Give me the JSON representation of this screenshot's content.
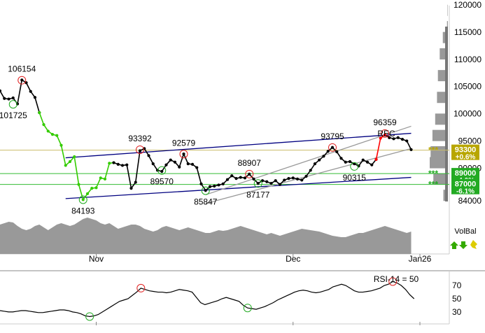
{
  "chart_data": {
    "type": "line",
    "price_panel": {
      "ylim": [
        84000,
        120000
      ],
      "y_ticks": [
        84000,
        90000,
        95000,
        100000,
        105000,
        110000,
        115000,
        120000
      ],
      "y_tick_labels": [
        "84000",
        "90000",
        "95000",
        "100000",
        "105000",
        "110000",
        "115000",
        "120000"
      ],
      "x_labels": [
        {
          "label": "Nov",
          "index": 22
        },
        {
          "label": "Dec",
          "index": 67
        },
        {
          "label": "Jan26",
          "index": 96
        }
      ],
      "series": {
        "values": [
          104200,
          102800,
          102700,
          102900,
          101800,
          106200,
          105700,
          104100,
          103000,
          100200,
          98000,
          96800,
          96200,
          96000,
          94200,
          90500,
          91200,
          92100,
          87000,
          84200,
          85300,
          86300,
          86400,
          88200,
          88000,
          90900,
          91000,
          90700,
          90500,
          90600,
          86300,
          87400,
          93200,
          93600,
          92300,
          90800,
          89600,
          89400,
          90600,
          91500,
          91100,
          90200,
          92600,
          90800,
          90700,
          90100,
          87100,
          85900,
          86600,
          86700,
          86900,
          87100,
          87900,
          88600,
          88100,
          88300,
          88200,
          88900,
          88000,
          87200,
          87700,
          87500,
          87200,
          87700,
          87000,
          87800,
          88100,
          88200,
          88000,
          87800,
          88500,
          89600,
          90800,
          91500,
          92200,
          93100,
          93800,
          93000,
          91800,
          91100,
          91200,
          90800,
          90400,
          91500,
          91100,
          90600,
          91600,
          95500,
          96100,
          95600,
          95400,
          95600,
          95300,
          95000,
          93400
        ],
        "color_segments": [
          {
            "from": 0,
            "to": 9,
            "color": "#000000"
          },
          {
            "from": 9,
            "to": 26,
            "color": "#33cc00"
          },
          {
            "from": 26,
            "to": 86,
            "color": "#000000"
          },
          {
            "from": 86,
            "to": 89,
            "color": "#ff0000"
          },
          {
            "from": 89,
            "to": 94,
            "color": "#000000"
          }
        ]
      },
      "annotations": [
        {
          "text": "106154",
          "index": 5,
          "value": 106154,
          "kind": "high"
        },
        {
          "text": "101725",
          "index": 3,
          "value": 101725,
          "kind": "low"
        },
        {
          "text": "84193",
          "index": 19,
          "value": 84193,
          "kind": "low"
        },
        {
          "text": "93392",
          "index": 32,
          "value": 93392,
          "kind": "high"
        },
        {
          "text": "89570",
          "index": 37,
          "value": 89570,
          "kind": "low"
        },
        {
          "text": "92579",
          "index": 42,
          "value": 92579,
          "kind": "high"
        },
        {
          "text": "85847",
          "index": 47,
          "value": 85847,
          "kind": "low"
        },
        {
          "text": "88907",
          "index": 57,
          "value": 88907,
          "kind": "high"
        },
        {
          "text": "87177",
          "index": 59,
          "value": 87177,
          "kind": "low"
        },
        {
          "text": "93795",
          "index": 76,
          "value": 93795,
          "kind": "high"
        },
        {
          "text": "90315",
          "index": 81,
          "value": 90315,
          "kind": "low"
        },
        {
          "text": "96359",
          "index": 88,
          "value": 96359,
          "kind": "high"
        }
      ],
      "rec_label": "REC",
      "trendlines": [
        {
          "color": "#000080",
          "points": [
            [
              15,
              91900
            ],
            [
              94,
              96400
            ]
          ]
        },
        {
          "color": "#000080",
          "points": [
            [
              15,
              84400
            ],
            [
              94,
              88300
            ]
          ]
        },
        {
          "color": "#999999",
          "points": [
            [
              47,
              85100
            ],
            [
              94,
              97700
            ]
          ]
        },
        {
          "color": "#999999",
          "points": [
            [
              47,
              83500
            ],
            [
              94,
              93600
            ]
          ]
        }
      ],
      "horizontal_lines": [
        {
          "value": 93300,
          "color": "#c9bd69"
        },
        {
          "value": 89000,
          "color": "#33bb33"
        },
        {
          "value": 87000,
          "color": "#33bb33"
        }
      ],
      "price_tags": [
        {
          "value": 93300,
          "price": "93300",
          "change": "+0.6%",
          "color": "#b8a600"
        },
        {
          "value": 89000,
          "price": "89000",
          "change": "-4.0%",
          "color": "#22aa22"
        },
        {
          "value": 87000,
          "price": "87000",
          "change": "-6.1%",
          "color": "#22aa22"
        }
      ],
      "volume_profile": [
        {
          "value": 119000,
          "size": 0.02
        },
        {
          "value": 116000,
          "size": 0.05
        },
        {
          "value": 114000,
          "size": 0.28
        },
        {
          "value": 111000,
          "size": 0.45
        },
        {
          "value": 107000,
          "size": 0.55
        },
        {
          "value": 103000,
          "size": 0.6
        },
        {
          "value": 99000,
          "size": 0.7
        },
        {
          "value": 96000,
          "size": 0.85
        },
        {
          "value": 93000,
          "size": 0.95
        },
        {
          "value": 91000,
          "size": 1.0
        },
        {
          "value": 88000,
          "size": 0.8
        },
        {
          "value": 85000,
          "size": 0.25
        }
      ],
      "volbal_label": "VolBal",
      "volbal_area": [
        42,
        44,
        46,
        45,
        40,
        36,
        34,
        36,
        40,
        42,
        38,
        34,
        38,
        42,
        44,
        42,
        40,
        42,
        46,
        50,
        52,
        50,
        48,
        44,
        42,
        44,
        40,
        36,
        38,
        40,
        42,
        42,
        40,
        36,
        34,
        32,
        34,
        38,
        40,
        38,
        36,
        34,
        36,
        38,
        36,
        34,
        32,
        30,
        30,
        32,
        34,
        33,
        34,
        36,
        38,
        40,
        38,
        36,
        34,
        32,
        30,
        28,
        30,
        28,
        26,
        28,
        30,
        32,
        34,
        36,
        35,
        34,
        33,
        32,
        30,
        28,
        26,
        25,
        24,
        24,
        26,
        28,
        30,
        30,
        32,
        34,
        36,
        38,
        40,
        38,
        36,
        34,
        32,
        30,
        32
      ]
    },
    "rsi_panel": {
      "label": "RSI-14 = 50",
      "ylim": [
        15,
        85
      ],
      "y_ticks": [
        30,
        50,
        70
      ],
      "y_tick_labels": [
        "30",
        "50",
        "70"
      ],
      "values": [
        32,
        31,
        30,
        30,
        31,
        32,
        32,
        31,
        30,
        29,
        29,
        30,
        31,
        32,
        33,
        33,
        32,
        30,
        29,
        27,
        24,
        23,
        24,
        26,
        30,
        34,
        38,
        42,
        46,
        48,
        50,
        55,
        60,
        66,
        64,
        62,
        61,
        60,
        60,
        59,
        60,
        62,
        64,
        63,
        62,
        60,
        52,
        44,
        41,
        43,
        45,
        47,
        50,
        52,
        50,
        48,
        46,
        40,
        36,
        35,
        34,
        36,
        38,
        41,
        44,
        48,
        51,
        54,
        57,
        60,
        62,
        63,
        62,
        60,
        59,
        60,
        62,
        64,
        68,
        70,
        72,
        70,
        66,
        62,
        60,
        60,
        61,
        62,
        64,
        66,
        70,
        72,
        76,
        74,
        70,
        64,
        56,
        50
      ],
      "markers": [
        {
          "index": 21,
          "value": 23,
          "kind": "low"
        },
        {
          "index": 33,
          "value": 66,
          "kind": "high"
        },
        {
          "index": 58,
          "value": 36,
          "kind": "low"
        },
        {
          "index": 92,
          "value": 76,
          "kind": "high"
        }
      ],
      "x_labels": [
        {
          "label": "Nov",
          "index": 22
        },
        {
          "label": "Dec",
          "index": 67
        },
        {
          "label": "Jan26",
          "index": 96
        }
      ]
    }
  }
}
